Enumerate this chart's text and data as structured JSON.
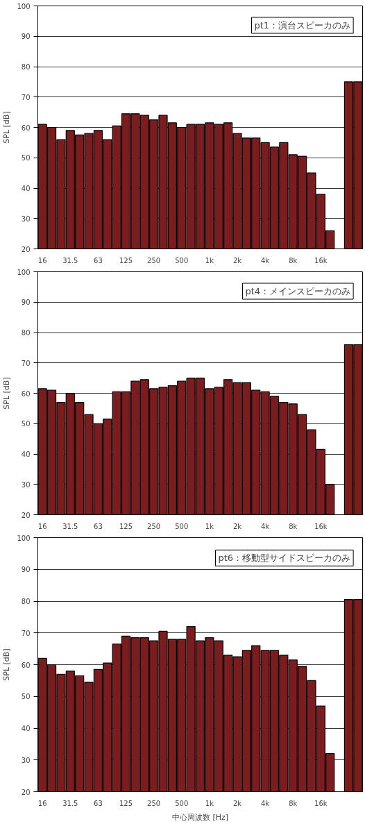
{
  "chart_data": [
    {
      "type": "bar",
      "ylabel": "SPL [dB]",
      "annotations": [
        "pt1：演台スピーカのみ"
      ],
      "categories": [
        "16",
        null,
        null,
        "31.5",
        null,
        null,
        "63",
        null,
        null,
        "125",
        null,
        null,
        "250",
        null,
        null,
        "500",
        null,
        null,
        "1k",
        null,
        null,
        "2k",
        null,
        null,
        "4k",
        null,
        null,
        "8k",
        null,
        null,
        "16k",
        null,
        null,
        null,
        null
      ],
      "series": [
        {
          "color": "#7b1c1f",
          "values": [
            61,
            60,
            56,
            59,
            57.5,
            58,
            59,
            56,
            60.5,
            64.5,
            64.5,
            64,
            62.5,
            64,
            61.5,
            60,
            61,
            61,
            61.5,
            61,
            61.5,
            58,
            56.5,
            56.5,
            55,
            53.5,
            55,
            51,
            50.5,
            45,
            38,
            26,
            null,
            75,
            75
          ]
        }
      ],
      "ylim": [
        20,
        100
      ],
      "yticks": [
        20,
        30,
        40,
        50,
        60,
        70,
        80,
        90,
        100
      ],
      "grid": "y"
    },
    {
      "type": "bar",
      "ylabel": "SPL [dB]",
      "annotations": [
        "pt4：メインスピーカのみ"
      ],
      "categories": [
        "16",
        null,
        null,
        "31.5",
        null,
        null,
        "63",
        null,
        null,
        "125",
        null,
        null,
        "250",
        null,
        null,
        "500",
        null,
        null,
        "1k",
        null,
        null,
        "2k",
        null,
        null,
        "4k",
        null,
        null,
        "8k",
        null,
        null,
        "16k",
        null,
        null,
        null,
        null
      ],
      "series": [
        {
          "color": "#7b1c1f",
          "values": [
            61.5,
            61,
            57,
            60,
            57,
            53,
            50,
            51.5,
            60.5,
            60.5,
            64,
            64.5,
            61.5,
            62,
            62.5,
            64,
            65,
            65,
            61.5,
            62,
            64.5,
            63.5,
            63.5,
            61,
            60.5,
            59,
            57,
            56.5,
            53,
            48,
            41.5,
            30,
            null,
            76,
            76
          ]
        }
      ],
      "ylim": [
        20,
        100
      ],
      "yticks": [
        20,
        30,
        40,
        50,
        60,
        70,
        80,
        90,
        100
      ],
      "grid": "y"
    },
    {
      "type": "bar",
      "ylabel": "SPL [dB]",
      "xlabel": "中心周波数 [Hz]",
      "annotations": [
        "pt6：移動型サイドスピーカのみ"
      ],
      "categories": [
        "16",
        null,
        null,
        "31.5",
        null,
        null,
        "63",
        null,
        null,
        "125",
        null,
        null,
        "250",
        null,
        null,
        "500",
        null,
        null,
        "1k",
        null,
        null,
        "2k",
        null,
        null,
        "4k",
        null,
        null,
        "8k",
        null,
        null,
        "16k",
        null,
        null,
        null,
        null
      ],
      "series": [
        {
          "color": "#7b1c1f",
          "values": [
            62,
            60,
            57,
            58,
            56.5,
            54.5,
            58.5,
            60.5,
            66.5,
            69,
            68.5,
            68.5,
            67.5,
            70.5,
            68,
            68,
            72,
            67.5,
            68.5,
            67.5,
            63,
            62.5,
            64.5,
            66,
            64.5,
            64.5,
            63,
            61.5,
            59.5,
            55,
            47,
            32,
            null,
            80.5,
            80.5
          ]
        }
      ],
      "ylim": [
        20,
        100
      ],
      "yticks": [
        20,
        30,
        40,
        50,
        60,
        70,
        80,
        90,
        100
      ],
      "grid": "y"
    }
  ]
}
